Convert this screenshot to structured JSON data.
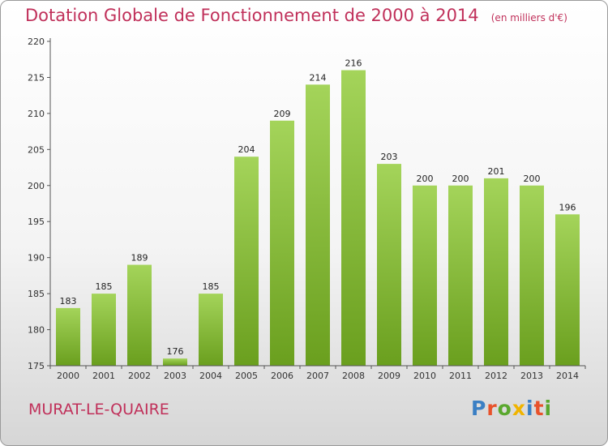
{
  "header": {
    "title": "Dotation Globale de Fonctionnement de 2000 à 2014",
    "unit_note": "(en milliers d'€)"
  },
  "footer": {
    "commune": "MURAT-LE-QUAIRE",
    "logo_text": "Proxiti"
  },
  "colors": {
    "title": "#c0305a",
    "bar_light": "#a4d45a",
    "bar_dark": "#6a9f1e",
    "logo": [
      "#3a7fc4",
      "#e8522b",
      "#5aa82e",
      "#f0b400",
      "#3a7fc4",
      "#e8522b",
      "#5aa82e"
    ]
  },
  "chart_data": {
    "type": "bar",
    "title": "Dotation Globale de Fonctionnement de 2000 à 2014",
    "subtitle": "(en milliers d'€)",
    "xlabel": "",
    "ylabel": "",
    "categories": [
      "2000",
      "2001",
      "2002",
      "2003",
      "2004",
      "2005",
      "2006",
      "2007",
      "2008",
      "2009",
      "2010",
      "2011",
      "2012",
      "2013",
      "2014"
    ],
    "values": [
      183,
      185,
      189,
      176,
      185,
      204,
      209,
      214,
      216,
      203,
      200,
      200,
      201,
      200,
      196
    ],
    "ylim": [
      175,
      220
    ],
    "yticks": [
      175,
      180,
      185,
      190,
      195,
      200,
      205,
      210,
      215,
      220
    ],
    "grid": false,
    "data_labels": true
  }
}
